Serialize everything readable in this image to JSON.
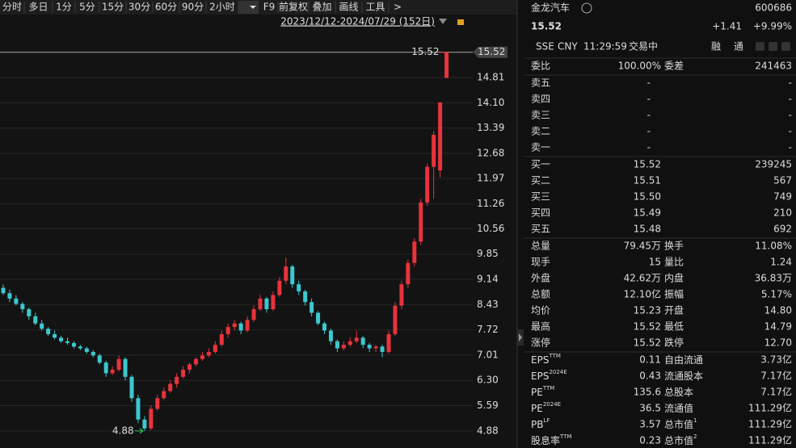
{
  "toolbar": {
    "items": [
      "分时",
      "多日",
      "1分",
      "5分",
      "15分",
      "30分",
      "60分",
      "90分",
      "2小时",
      "F9",
      "前复权",
      "叠加",
      "画线",
      "工具",
      ">"
    ],
    "range": "2023/12/12-2024/07/29 (152日)"
  },
  "chart_data": {
    "type": "candlestick",
    "up_color": "#e8333c",
    "down_color": "#3cc8cf",
    "candles": [
      [
        8.9,
        9.0,
        8.7,
        8.75
      ],
      [
        8.75,
        8.85,
        8.5,
        8.6
      ],
      [
        8.6,
        8.7,
        8.4,
        8.45
      ],
      [
        8.45,
        8.5,
        8.2,
        8.3
      ],
      [
        8.3,
        8.35,
        8.0,
        8.1
      ],
      [
        8.1,
        8.2,
        7.85,
        7.9
      ],
      [
        7.9,
        8.0,
        7.7,
        7.75
      ],
      [
        7.75,
        7.8,
        7.55,
        7.6
      ],
      [
        7.6,
        7.7,
        7.45,
        7.5
      ],
      [
        7.5,
        7.55,
        7.35,
        7.4
      ],
      [
        7.4,
        7.5,
        7.3,
        7.35
      ],
      [
        7.35,
        7.4,
        7.2,
        7.25
      ],
      [
        7.25,
        7.3,
        7.15,
        7.2
      ],
      [
        7.2,
        7.25,
        7.05,
        7.1
      ],
      [
        7.1,
        7.15,
        6.95,
        7.0
      ],
      [
        7.0,
        7.05,
        6.75,
        6.8
      ],
      [
        6.8,
        6.85,
        6.4,
        6.5
      ],
      [
        6.5,
        6.7,
        6.45,
        6.6
      ],
      [
        6.6,
        7.0,
        6.55,
        6.9
      ],
      [
        6.9,
        6.95,
        6.3,
        6.4
      ],
      [
        6.4,
        6.45,
        5.7,
        5.8
      ],
      [
        5.8,
        5.9,
        5.1,
        5.2
      ],
      [
        5.2,
        5.3,
        4.88,
        4.95
      ],
      [
        4.95,
        5.6,
        4.9,
        5.5
      ],
      [
        5.5,
        5.9,
        5.45,
        5.8
      ],
      [
        5.8,
        6.1,
        5.75,
        6.0
      ],
      [
        6.0,
        6.3,
        5.95,
        6.2
      ],
      [
        6.2,
        6.5,
        6.1,
        6.4
      ],
      [
        6.4,
        6.7,
        6.35,
        6.6
      ],
      [
        6.6,
        6.8,
        6.5,
        6.75
      ],
      [
        6.75,
        6.95,
        6.7,
        6.9
      ],
      [
        6.9,
        7.1,
        6.85,
        7.0
      ],
      [
        7.0,
        7.2,
        6.95,
        7.1
      ],
      [
        7.1,
        7.4,
        7.05,
        7.3
      ],
      [
        7.3,
        7.7,
        7.25,
        7.6
      ],
      [
        7.6,
        7.9,
        7.5,
        7.8
      ],
      [
        7.8,
        8.0,
        7.7,
        7.9
      ],
      [
        7.9,
        7.95,
        7.6,
        7.7
      ],
      [
        7.7,
        8.1,
        7.65,
        8.0
      ],
      [
        8.0,
        8.4,
        7.95,
        8.3
      ],
      [
        8.3,
        8.7,
        8.25,
        8.6
      ],
      [
        8.6,
        8.65,
        8.2,
        8.3
      ],
      [
        8.3,
        8.8,
        8.25,
        8.7
      ],
      [
        8.7,
        9.2,
        8.65,
        9.1
      ],
      [
        9.1,
        9.75,
        9.0,
        9.5
      ],
      [
        9.5,
        9.55,
        8.9,
        9.0
      ],
      [
        9.0,
        9.1,
        8.7,
        8.8
      ],
      [
        8.8,
        8.85,
        8.4,
        8.5
      ],
      [
        8.5,
        8.6,
        8.1,
        8.2
      ],
      [
        8.2,
        8.25,
        7.85,
        7.9
      ],
      [
        7.9,
        7.95,
        7.6,
        7.7
      ],
      [
        7.7,
        7.75,
        7.3,
        7.4
      ],
      [
        7.4,
        7.45,
        7.1,
        7.2
      ],
      [
        7.2,
        7.4,
        7.15,
        7.3
      ],
      [
        7.3,
        7.5,
        7.25,
        7.4
      ],
      [
        7.4,
        7.7,
        7.35,
        7.5
      ],
      [
        7.5,
        7.55,
        7.2,
        7.3
      ],
      [
        7.3,
        7.35,
        7.1,
        7.2
      ],
      [
        7.2,
        7.3,
        7.1,
        7.25
      ],
      [
        7.25,
        7.3,
        6.95,
        7.1
      ],
      [
        7.1,
        7.7,
        7.05,
        7.6
      ],
      [
        7.6,
        8.5,
        7.55,
        8.4
      ],
      [
        8.4,
        9.1,
        8.3,
        9.0
      ],
      [
        9.0,
        9.7,
        8.9,
        9.6
      ],
      [
        9.6,
        10.3,
        9.5,
        10.2
      ],
      [
        10.2,
        11.4,
        10.1,
        11.3
      ],
      [
        11.3,
        12.4,
        11.2,
        12.3
      ],
      [
        12.3,
        13.3,
        11.4,
        13.2
      ],
      [
        12.2,
        14.11,
        12.0,
        14.11
      ],
      [
        14.8,
        15.52,
        14.79,
        15.52
      ]
    ],
    "ylim": [
      4.4,
      16.58
    ],
    "yticks": [
      4.88,
      5.59,
      {
        "value": 6.3,
        "label": "6.30"
      },
      7.01,
      7.72,
      8.43,
      9.14,
      9.85,
      10.56,
      11.26,
      11.97,
      12.68,
      13.39,
      {
        "value": 14.1,
        "label": "14.10"
      },
      14.81
    ],
    "last_price": 15.52,
    "high_label": 15.52,
    "low_label": 4.88
  },
  "header": {
    "name": "金龙汽车",
    "code": "600686",
    "price": "15.52",
    "change": "+1.41",
    "pct": "+9.99%",
    "market": "SSE",
    "currency": "CNY",
    "time": "11:29:59",
    "status": "交易中",
    "tags": [
      "融",
      "通"
    ]
  },
  "order": {
    "cells": [
      "委比",
      "100.00%",
      "委差",
      "241463"
    ]
  },
  "asks": [
    [
      "卖五",
      "-",
      "-"
    ],
    [
      "卖四",
      "-",
      "-"
    ],
    [
      "卖三",
      "-",
      "-"
    ],
    [
      "卖二",
      "-",
      "-"
    ],
    [
      "卖一",
      "-",
      "-"
    ]
  ],
  "bids": [
    [
      "买一",
      "15.52",
      "239245"
    ],
    [
      "买二",
      "15.51",
      "567"
    ],
    [
      "买三",
      "15.50",
      "749"
    ],
    [
      "买四",
      "15.49",
      "210"
    ],
    [
      "买五",
      "15.48",
      "692"
    ]
  ],
  "stats": [
    {
      "cells": [
        "总量",
        "79.45万",
        "换手",
        "11.08%"
      ],
      "colors": [
        "#ddd",
        "#ddd"
      ]
    },
    {
      "cells": [
        "现手",
        "15",
        "量比",
        "1.24"
      ],
      "colors": [
        "#ddd",
        "#ddd"
      ]
    },
    {
      "cells": [
        "外盘",
        "42.62万",
        "内盘",
        "36.83万"
      ],
      "colors": [
        "#ff4040",
        "#2fd05a"
      ]
    },
    {
      "cells": [
        "总额",
        "12.10亿",
        "振幅",
        "5.17%"
      ],
      "colors": [
        "#ddd",
        "#ddd"
      ]
    },
    {
      "cells": [
        "均价",
        "15.23",
        "开盘",
        "14.80"
      ],
      "colors": [
        "#ff4040",
        "#ff4040"
      ]
    },
    {
      "cells": [
        "最高",
        "15.52",
        "最低",
        "14.79"
      ],
      "colors": [
        "#ff4040",
        "#2fd05a"
      ]
    },
    {
      "cells": [
        "涨停",
        "15.52",
        "跌停",
        "12.70"
      ],
      "colors": [
        "#ff4040",
        "#2fd05a"
      ]
    }
  ],
  "fundamentals": [
    {
      "label": "EPS",
      "sup": "TTM",
      "value": "0.11",
      "label2": "自由流通",
      "value2": "3.73亿"
    },
    {
      "label": "EPS",
      "sup": "2024E",
      "value": "0.43",
      "label2": "流通股本",
      "value2": "7.17亿"
    },
    {
      "label": "PE",
      "sup": "TTM",
      "value": "135.6",
      "label2": "总股本",
      "value2": "7.17亿"
    },
    {
      "label": "PE",
      "sup": "2024E",
      "value": "36.5",
      "label2": "流通值",
      "value2": "111.29亿"
    },
    {
      "label": "PB",
      "sup": "LF",
      "value": "3.57",
      "label2": "总市值",
      "sup2": "1",
      "value2": "111.29亿"
    },
    {
      "label": "股息率",
      "sup": "TTM",
      "value": "0.23",
      "label2": "总市值",
      "sup2": "2",
      "value2": "111.29亿"
    }
  ]
}
